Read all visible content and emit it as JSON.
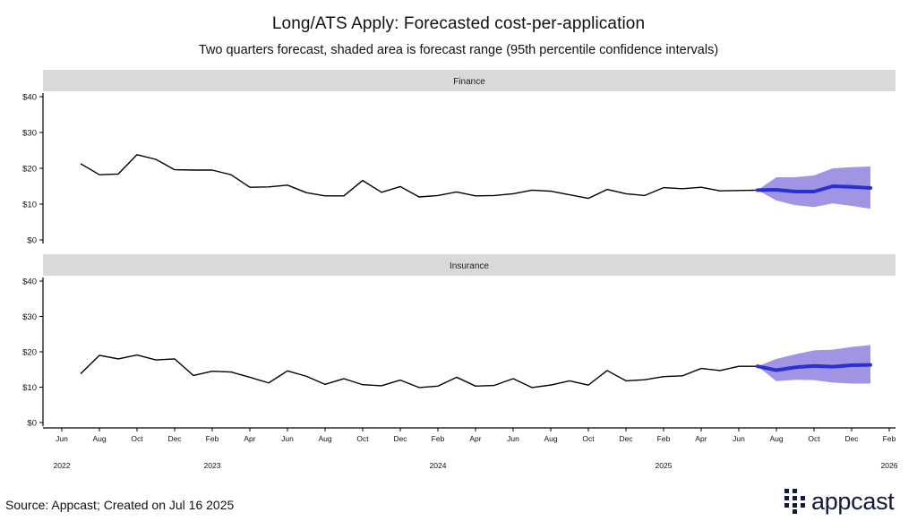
{
  "title": "Long/ATS Apply: Forecasted cost-per-application",
  "subtitle": "Two quarters forecast, shaded area is forecast range (95th percentile confidence intervals)",
  "source": "Source: Appcast; Created on Jul 16 2025",
  "logo": {
    "name": "appcast",
    "mark_icon": "appcast-dots-logo-icon"
  },
  "colors": {
    "actual_line": "#000000",
    "forecast_line": "#2a2fd0",
    "forecast_band": "#9b8ee3",
    "strip_background": "#d9d9d9"
  },
  "chart_data": {
    "type": "line",
    "title": "Long/ATS Apply: Forecasted cost-per-application",
    "subtitle": "Two quarters forecast, shaded area is forecast range (95th percentile confidence intervals)",
    "xlabel": "",
    "ylabel": "",
    "x_unit": "month index (0 = Jun 2022)",
    "x_range": [
      0,
      44
    ],
    "ylim": [
      0,
      40
    ],
    "y_ticks": [
      0,
      10,
      20,
      30,
      40
    ],
    "y_tick_labels": [
      "$0",
      "$10",
      "$20",
      "$30",
      "$40"
    ],
    "x_ticks": [
      0,
      2,
      4,
      6,
      8,
      10,
      12,
      14,
      16,
      18,
      20,
      22,
      24,
      26,
      28,
      30,
      32,
      34,
      36,
      38,
      40,
      42,
      44
    ],
    "x_tick_labels": [
      "Jun",
      "Aug",
      "Oct",
      "Dec",
      "Feb",
      "Apr",
      "Jun",
      "Aug",
      "Oct",
      "Dec",
      "Feb",
      "Apr",
      "Jun",
      "Aug",
      "Oct",
      "Dec",
      "Feb",
      "Apr",
      "Jun",
      "Aug",
      "Oct",
      "Dec",
      "Feb"
    ],
    "year_labels": [
      {
        "x": 0,
        "label": "2022"
      },
      {
        "x": 8,
        "label": "2023"
      },
      {
        "x": 20,
        "label": "2024"
      },
      {
        "x": 32,
        "label": "2025"
      },
      {
        "x": 44,
        "label": "2026"
      }
    ],
    "grid": false,
    "panels": [
      {
        "name": "Finance",
        "actual": {
          "x": [
            1,
            2,
            3,
            4,
            5,
            6,
            7,
            8,
            9,
            10,
            11,
            12,
            13,
            14,
            15,
            16,
            17,
            18,
            19,
            20,
            21,
            22,
            23,
            24,
            25,
            26,
            27,
            28,
            29,
            30,
            31,
            32,
            33,
            34,
            35,
            36,
            37
          ],
          "values": [
            21.3,
            18.2,
            18.4,
            23.8,
            22.5,
            19.6,
            19.5,
            19.5,
            18.2,
            14.7,
            14.8,
            15.3,
            13.2,
            12.3,
            12.3,
            16.6,
            13.3,
            14.9,
            12.0,
            12.4,
            13.4,
            12.3,
            12.4,
            12.9,
            13.9,
            13.6,
            12.6,
            11.6,
            14.1,
            12.9,
            12.4,
            14.6,
            14.3,
            14.7,
            13.7,
            13.8,
            13.9
          ]
        },
        "forecast": {
          "x": [
            37,
            38,
            39,
            40,
            41,
            42,
            43
          ],
          "mean": [
            13.9,
            14.0,
            13.5,
            13.5,
            15.0,
            14.8,
            14.5
          ],
          "lower": [
            13.9,
            11.0,
            9.7,
            9.2,
            10.2,
            9.5,
            8.7
          ],
          "upper": [
            13.9,
            17.5,
            17.5,
            18.0,
            20.0,
            20.3,
            20.5
          ]
        }
      },
      {
        "name": "Insurance",
        "actual": {
          "x": [
            1,
            2,
            3,
            4,
            5,
            6,
            7,
            8,
            9,
            10,
            11,
            12,
            13,
            14,
            15,
            16,
            17,
            18,
            19,
            20,
            21,
            22,
            23,
            24,
            25,
            26,
            27,
            28,
            29,
            30,
            31,
            32,
            33,
            34,
            35,
            36,
            37
          ],
          "values": [
            13.8,
            19.0,
            18.0,
            19.1,
            17.7,
            18.0,
            13.3,
            14.5,
            14.3,
            12.8,
            11.2,
            14.6,
            13.1,
            10.8,
            12.4,
            10.7,
            10.4,
            12.0,
            9.9,
            10.3,
            12.8,
            10.3,
            10.5,
            12.4,
            9.9,
            10.6,
            11.8,
            10.6,
            14.7,
            11.8,
            12.1,
            13.0,
            13.2,
            15.3,
            14.7,
            15.9,
            15.9
          ]
        },
        "forecast": {
          "x": [
            37,
            38,
            39,
            40,
            41,
            42,
            43
          ],
          "mean": [
            15.9,
            14.8,
            15.6,
            16.0,
            15.8,
            16.2,
            16.3
          ],
          "lower": [
            15.9,
            11.7,
            12.1,
            12.0,
            11.3,
            11.0,
            11.0
          ],
          "upper": [
            15.9,
            18.0,
            19.3,
            20.4,
            20.6,
            21.4,
            21.9
          ]
        }
      }
    ]
  }
}
